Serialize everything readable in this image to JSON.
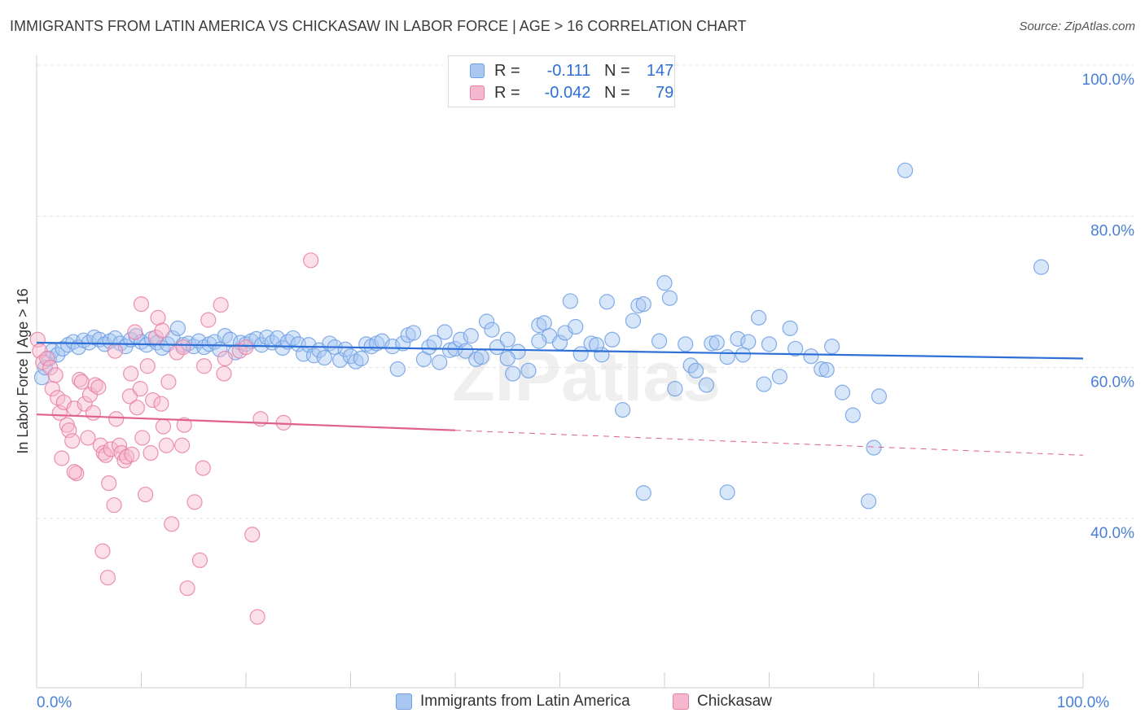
{
  "chart_data": {
    "type": "scatter",
    "title": "IMMIGRANTS FROM LATIN AMERICA VS CHICKASAW IN LABOR FORCE | AGE > 16 CORRELATION CHART",
    "source": "Source: ZipAtlas.com",
    "ylabel": "In Labor Force | Age > 16",
    "xlim": [
      0,
      100
    ],
    "ylim": [
      20,
      100
    ],
    "y_ticks": [
      {
        "value": 100,
        "label": "100.0%"
      },
      {
        "value": 80,
        "label": "80.0%"
      },
      {
        "value": 60,
        "label": "60.0%"
      },
      {
        "value": 40,
        "label": "40.0%"
      }
    ],
    "x_tick_labels": [
      {
        "value": 0,
        "label": "0.0%"
      },
      {
        "value": 100,
        "label": "100.0%"
      }
    ],
    "grid": true,
    "legend_position": "top-center",
    "watermark": "ZIPatlas",
    "series": [
      {
        "name": "Immigrants from Latin America",
        "color": "#6e9fe3",
        "fill": "#a9c7f1",
        "stat_r": "-0.111",
        "stat_n": "147",
        "trend": {
          "x0": 0,
          "y0": 65.1,
          "x1": 100,
          "y1": 63.0
        },
        "points": [
          [
            0.5,
            60.5
          ],
          [
            0.8,
            61.8
          ],
          [
            1.2,
            63.0
          ],
          [
            1.5,
            64.0
          ],
          [
            2.0,
            63.5
          ],
          [
            2.5,
            64.3
          ],
          [
            3.0,
            64.8
          ],
          [
            3.5,
            65.2
          ],
          [
            4.0,
            64.5
          ],
          [
            4.5,
            65.4
          ],
          [
            5.0,
            65.1
          ],
          [
            5.5,
            65.8
          ],
          [
            6.0,
            65.5
          ],
          [
            6.5,
            64.9
          ],
          [
            7.0,
            65.3
          ],
          [
            7.5,
            65.7
          ],
          [
            8.0,
            65.0
          ],
          [
            8.5,
            64.6
          ],
          [
            9.0,
            65.5
          ],
          [
            9.5,
            66.0
          ],
          [
            10.0,
            65.2
          ],
          [
            10.5,
            64.8
          ],
          [
            11.0,
            65.6
          ],
          [
            11.5,
            65.1
          ],
          [
            12.0,
            64.4
          ],
          [
            12.5,
            64.9
          ],
          [
            13.0,
            65.7
          ],
          [
            13.5,
            67.0
          ],
          [
            14.0,
            64.8
          ],
          [
            14.5,
            65.0
          ],
          [
            15.0,
            64.6
          ],
          [
            15.5,
            65.3
          ],
          [
            16.0,
            64.5
          ],
          [
            16.5,
            64.9
          ],
          [
            17.0,
            65.2
          ],
          [
            17.5,
            64.2
          ],
          [
            18.0,
            66.0
          ],
          [
            18.5,
            65.5
          ],
          [
            19.0,
            63.8
          ],
          [
            19.5,
            65.1
          ],
          [
            20.0,
            64.9
          ],
          [
            20.5,
            65.3
          ],
          [
            21.0,
            65.6
          ],
          [
            21.5,
            64.8
          ],
          [
            22.0,
            65.8
          ],
          [
            22.5,
            65.1
          ],
          [
            23.0,
            65.7
          ],
          [
            23.5,
            64.4
          ],
          [
            24.0,
            65.2
          ],
          [
            24.5,
            65.7
          ],
          [
            25.0,
            64.9
          ],
          [
            25.5,
            63.6
          ],
          [
            26.0,
            64.8
          ],
          [
            26.5,
            63.4
          ],
          [
            27.0,
            64.1
          ],
          [
            27.5,
            63.1
          ],
          [
            28.0,
            65.0
          ],
          [
            28.5,
            64.5
          ],
          [
            29.0,
            62.8
          ],
          [
            29.5,
            64.2
          ],
          [
            30.0,
            63.3
          ],
          [
            30.5,
            62.6
          ],
          [
            31.0,
            63.0
          ],
          [
            31.5,
            64.9
          ],
          [
            32.0,
            64.6
          ],
          [
            32.5,
            65.0
          ],
          [
            33.0,
            65.3
          ],
          [
            34.0,
            64.6
          ],
          [
            34.5,
            61.6
          ],
          [
            35.0,
            65.0
          ],
          [
            35.5,
            66.1
          ],
          [
            36.0,
            66.4
          ],
          [
            37.0,
            62.9
          ],
          [
            37.5,
            64.5
          ],
          [
            38.0,
            65.1
          ],
          [
            38.5,
            62.5
          ],
          [
            39.0,
            66.5
          ],
          [
            39.5,
            64.1
          ],
          [
            40.0,
            64.3
          ],
          [
            40.5,
            65.5
          ],
          [
            41.0,
            64.0
          ],
          [
            41.5,
            66.0
          ],
          [
            42.0,
            62.9
          ],
          [
            42.5,
            63.2
          ],
          [
            43.0,
            67.9
          ],
          [
            43.5,
            66.8
          ],
          [
            44.0,
            64.5
          ],
          [
            45.0,
            65.5
          ],
          [
            45.5,
            61.0
          ],
          [
            46.0,
            63.9
          ],
          [
            47.0,
            61.4
          ],
          [
            48.0,
            67.4
          ],
          [
            48.5,
            67.7
          ],
          [
            49.0,
            66.0
          ],
          [
            50.0,
            65.1
          ],
          [
            50.5,
            66.4
          ],
          [
            51.0,
            70.6
          ],
          [
            51.5,
            67.2
          ],
          [
            52.0,
            63.6
          ],
          [
            53.0,
            65.0
          ],
          [
            54.0,
            63.5
          ],
          [
            54.5,
            70.5
          ],
          [
            55.0,
            65.5
          ],
          [
            56.0,
            56.2
          ],
          [
            57.0,
            68.0
          ],
          [
            57.5,
            70.0
          ],
          [
            58.0,
            70.2
          ],
          [
            59.5,
            65.3
          ],
          [
            60.0,
            73.0
          ],
          [
            60.5,
            71.0
          ],
          [
            61.0,
            59.0
          ],
          [
            62.0,
            64.9
          ],
          [
            62.5,
            62.1
          ],
          [
            63.0,
            61.4
          ],
          [
            64.0,
            59.5
          ],
          [
            64.5,
            65.0
          ],
          [
            65.0,
            65.1
          ],
          [
            66.0,
            63.2
          ],
          [
            67.0,
            65.6
          ],
          [
            67.5,
            63.5
          ],
          [
            68.0,
            65.2
          ],
          [
            69.0,
            68.4
          ],
          [
            69.5,
            59.6
          ],
          [
            70.0,
            64.9
          ],
          [
            71.0,
            60.6
          ],
          [
            72.0,
            67.0
          ],
          [
            72.5,
            64.3
          ],
          [
            74.0,
            63.3
          ],
          [
            75.0,
            61.6
          ],
          [
            75.5,
            61.5
          ],
          [
            76.0,
            64.6
          ],
          [
            77.0,
            58.5
          ],
          [
            78.0,
            55.5
          ],
          [
            79.5,
            44.1
          ],
          [
            80.0,
            51.2
          ],
          [
            80.5,
            58.0
          ],
          [
            83.0,
            87.9
          ],
          [
            96.0,
            75.1
          ],
          [
            58.0,
            45.2
          ],
          [
            66.0,
            45.3
          ],
          [
            48.0,
            65.3
          ],
          [
            45.0,
            63.0
          ],
          [
            53.5,
            64.8
          ]
        ]
      },
      {
        "name": "Chickasaw",
        "color": "#e87fa4",
        "fill": "#f6b8cf",
        "stat_r": "-0.042",
        "stat_n": "79",
        "trend": {
          "x0": 0,
          "y0": 55.6,
          "x1": 40,
          "y1": 53.5
        },
        "trend_ext": {
          "x0": 40,
          "y0": 53.5,
          "x1": 100,
          "y1": 50.2
        },
        "points": [
          [
            0.1,
            65.5
          ],
          [
            0.3,
            64.0
          ],
          [
            0.6,
            62.5
          ],
          [
            1.0,
            63.0
          ],
          [
            1.3,
            61.8
          ],
          [
            1.5,
            59.0
          ],
          [
            1.8,
            60.8
          ],
          [
            2.0,
            57.8
          ],
          [
            2.2,
            55.8
          ],
          [
            2.4,
            49.8
          ],
          [
            2.6,
            57.2
          ],
          [
            2.9,
            54.2
          ],
          [
            3.1,
            53.5
          ],
          [
            3.4,
            52.1
          ],
          [
            3.6,
            56.4
          ],
          [
            3.8,
            47.8
          ],
          [
            4.1,
            60.2
          ],
          [
            4.3,
            59.9
          ],
          [
            4.6,
            57.0
          ],
          [
            4.9,
            52.5
          ],
          [
            5.1,
            58.2
          ],
          [
            5.4,
            55.8
          ],
          [
            5.6,
            59.5
          ],
          [
            5.9,
            59.2
          ],
          [
            6.1,
            51.5
          ],
          [
            6.4,
            50.5
          ],
          [
            6.6,
            50.2
          ],
          [
            6.9,
            46.5
          ],
          [
            7.1,
            51.0
          ],
          [
            7.4,
            43.6
          ],
          [
            7.6,
            55.0
          ],
          [
            7.9,
            51.5
          ],
          [
            8.1,
            50.5
          ],
          [
            8.4,
            49.5
          ],
          [
            8.6,
            50.0
          ],
          [
            8.9,
            58.0
          ],
          [
            9.1,
            50.3
          ],
          [
            9.4,
            66.5
          ],
          [
            9.6,
            56.5
          ],
          [
            9.9,
            59.0
          ],
          [
            10.1,
            52.5
          ],
          [
            10.4,
            45.0
          ],
          [
            10.6,
            62.0
          ],
          [
            10.9,
            50.5
          ],
          [
            11.1,
            57.5
          ],
          [
            11.4,
            65.8
          ],
          [
            11.6,
            68.4
          ],
          [
            11.9,
            57.0
          ],
          [
            12.1,
            54.0
          ],
          [
            12.4,
            51.5
          ],
          [
            12.6,
            59.9
          ],
          [
            12.9,
            41.1
          ],
          [
            13.4,
            63.8
          ],
          [
            13.9,
            51.5
          ],
          [
            14.1,
            54.2
          ],
          [
            14.4,
            32.6
          ],
          [
            15.1,
            44.0
          ],
          [
            15.6,
            36.3
          ],
          [
            15.9,
            48.5
          ],
          [
            16.4,
            68.1
          ],
          [
            17.6,
            70.1
          ],
          [
            17.9,
            61.0
          ],
          [
            19.4,
            64.0
          ],
          [
            20.6,
            39.7
          ],
          [
            21.1,
            28.8
          ],
          [
            21.4,
            55.0
          ],
          [
            23.6,
            54.5
          ],
          [
            26.2,
            76.0
          ],
          [
            6.3,
            37.5
          ],
          [
            6.8,
            34.0
          ],
          [
            3.6,
            48.0
          ],
          [
            9.0,
            61.0
          ],
          [
            7.5,
            64.0
          ],
          [
            10.0,
            70.2
          ],
          [
            12.0,
            66.7
          ],
          [
            14.0,
            64.5
          ],
          [
            16.0,
            62.0
          ],
          [
            18.0,
            63.0
          ],
          [
            20.0,
            64.5
          ]
        ]
      }
    ]
  }
}
